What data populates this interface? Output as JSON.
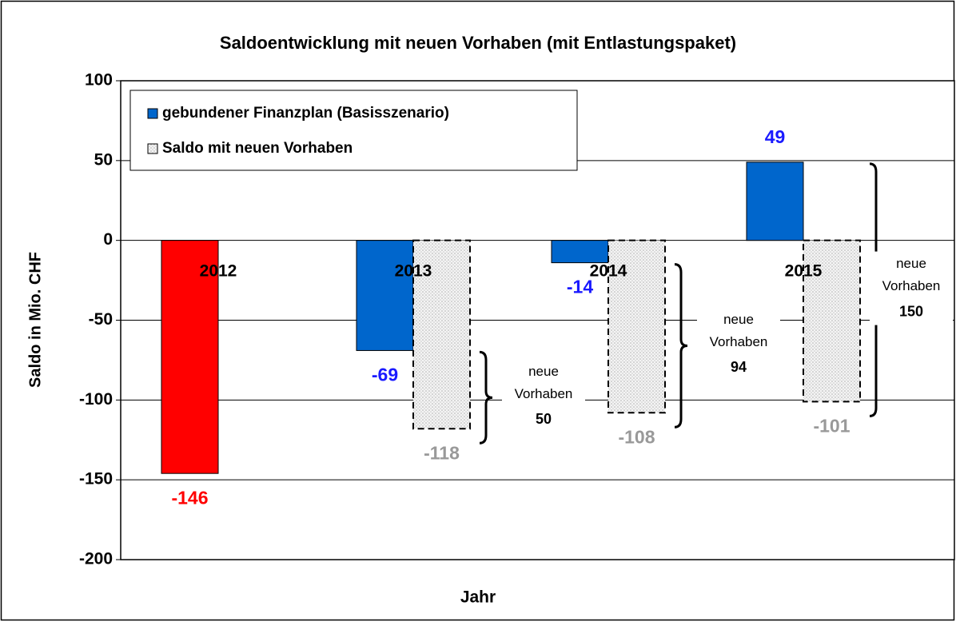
{
  "chart_data": {
    "type": "bar",
    "title": "Saldoentwicklung mit neuen Vorhaben (mit Entlastungspaket)",
    "y_label": "Saldo in Mio. CHF",
    "x_label": "Jahr",
    "categories": [
      "2012",
      "2013",
      "2014",
      "2015"
    ],
    "series": [
      {
        "name": "gebundener Finanzplan (Basisszenario)",
        "color": "#0066cc",
        "colors": [
          "#ff0000",
          "#0066cc",
          "#0066cc",
          "#0066cc"
        ],
        "label_colors": [
          "#ff0000",
          "#1a1aff",
          "#1a1aff",
          "#1a1aff"
        ],
        "values": [
          -146,
          -69,
          -14,
          49
        ]
      },
      {
        "name": "Saldo mit neuen Vorhaben",
        "color": "#cccccc",
        "label_colors": [
          "#999999",
          "#999999",
          "#999999",
          "#999999"
        ],
        "values": [
          null,
          -118,
          -108,
          -101
        ]
      }
    ],
    "annotations": [
      {
        "category": "2013",
        "label": [
          "neue",
          "Vorhaben"
        ],
        "value": 50
      },
      {
        "category": "2014",
        "label": [
          "neue",
          "Vorhaben"
        ],
        "value": 94
      },
      {
        "category": "2015",
        "label": [
          "neue",
          "Vorhaben"
        ],
        "value": 150
      }
    ],
    "ylim": [
      -200,
      100
    ],
    "yticks": [
      -200,
      -150,
      -100,
      -50,
      0,
      50,
      100
    ],
    "grid": true,
    "legend": "top-left"
  }
}
